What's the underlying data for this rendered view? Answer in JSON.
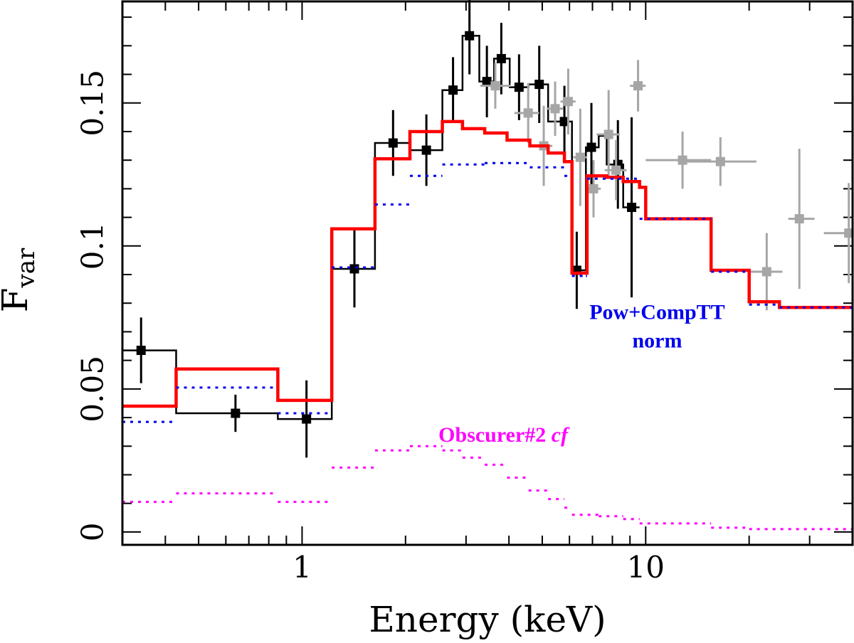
{
  "chart_data": {
    "type": "line",
    "xlabel": "Energy (keV)",
    "ylabel_main": "F",
    "ylabel_sub": "var",
    "x_scale": "log",
    "xlim": [
      0.3,
      40
    ],
    "ylim": [
      -0.0045,
      0.1855
    ],
    "x_tick_labels": [
      {
        "value": 1,
        "label": "1"
      },
      {
        "value": 10,
        "label": "10"
      }
    ],
    "y_tick_labels": [
      {
        "value": 0,
        "label": "0"
      },
      {
        "value": 0.05,
        "label": "0.05"
      },
      {
        "value": 0.1,
        "label": "0.1"
      },
      {
        "value": 0.15,
        "label": "0.15"
      }
    ],
    "y_major_ticks": [
      0,
      0.05,
      0.1,
      0.15
    ],
    "y_minor_step": 0.01,
    "x_major_ticks": [
      1,
      10
    ],
    "x_minor_ticks": [
      0.3,
      0.4,
      0.5,
      0.6,
      0.7,
      0.8,
      0.9,
      2,
      3,
      4,
      5,
      6,
      7,
      8,
      9,
      20,
      30,
      40
    ],
    "grid": false,
    "colors": {
      "black_data": "#000000",
      "grey_data": "#a6a6a6",
      "red_model": "#ff0000",
      "blue_model": "#0000ee",
      "magenta_model": "#ff00ff"
    },
    "annotations": [
      {
        "name": "blue-label-line1",
        "text": "Pow+CompTT",
        "color": "#0000ee",
        "x": 10.8,
        "y": 0.0745,
        "italic": false
      },
      {
        "name": "blue-label-line2",
        "text": "norm",
        "color": "#0000ee",
        "x": 10.8,
        "y": 0.0645,
        "italic": false
      },
      {
        "name": "magenta-label",
        "text": "Obscurer#2",
        "suffix": "cf",
        "color": "#ff00ff",
        "x": 3.85,
        "y": 0.0315,
        "italic_suffix": true
      }
    ],
    "series": [
      {
        "id": "black_data",
        "style": "step-data",
        "color": "#000000",
        "points": [
          {
            "x": 0.34,
            "xlo": 0.3,
            "xhi": 0.43,
            "y": 0.0635,
            "yerr": 0.0115
          },
          {
            "x": 0.64,
            "xlo": 0.43,
            "xhi": 0.85,
            "y": 0.0415,
            "yerr": 0.0065
          },
          {
            "x": 1.03,
            "xlo": 0.85,
            "xhi": 1.22,
            "y": 0.0395,
            "yerr": 0.0135
          },
          {
            "x": 1.42,
            "xlo": 1.22,
            "xhi": 1.63,
            "y": 0.092,
            "yerr": 0.0135
          },
          {
            "x": 1.84,
            "xlo": 1.63,
            "xhi": 2.06,
            "y": 0.136,
            "yerr": 0.0115
          },
          {
            "x": 2.3,
            "xlo": 2.06,
            "xhi": 2.56,
            "y": 0.1335,
            "yerr": 0.0125
          },
          {
            "x": 2.75,
            "xlo": 2.56,
            "xhi": 2.93,
            "y": 0.1545,
            "yerr": 0.0115
          },
          {
            "x": 3.07,
            "xlo": 2.93,
            "xhi": 3.28,
            "y": 0.1735,
            "yerr": 0.0135
          },
          {
            "x": 3.45,
            "xlo": 3.28,
            "xhi": 3.62,
            "y": 0.1575,
            "yerr": 0.0125
          },
          {
            "x": 3.8,
            "xlo": 3.62,
            "xhi": 4.02,
            "y": 0.1655,
            "yerr": 0.0125
          },
          {
            "x": 4.28,
            "xlo": 4.02,
            "xhi": 4.56,
            "y": 0.1555,
            "yerr": 0.0115
          },
          {
            "x": 4.9,
            "xlo": 4.56,
            "xhi": 5.2,
            "y": 0.1565,
            "yerr": 0.0135
          },
          {
            "x": 5.8,
            "xlo": 5.2,
            "xhi": 6.1,
            "y": 0.1435,
            "yerr": 0.0125
          },
          {
            "x": 6.3,
            "xlo": 6.1,
            "xhi": 6.7,
            "y": 0.0915,
            "yerr": 0.0135
          },
          {
            "x": 6.95,
            "xlo": 6.7,
            "xhi": 7.3,
            "y": 0.1345,
            "yerr": 0.0155
          },
          {
            "x": 8.3,
            "xlo": 7.7,
            "xhi": 8.6,
            "y": 0.1285,
            "yerr": 0.0155
          },
          {
            "x": 9.1,
            "xlo": 8.6,
            "xhi": 9.6,
            "y": 0.1135,
            "yerr": 0.0315
          }
        ],
        "step_outline": [
          [
            0.3,
            0.0635
          ],
          [
            0.43,
            0.0635
          ],
          [
            0.43,
            0.0415
          ],
          [
            0.85,
            0.0415
          ],
          [
            0.85,
            0.0395
          ],
          [
            1.22,
            0.0395
          ],
          [
            1.22,
            0.092
          ],
          [
            1.63,
            0.092
          ],
          [
            1.63,
            0.136
          ],
          [
            2.06,
            0.136
          ],
          [
            2.06,
            0.1335
          ],
          [
            2.56,
            0.1335
          ],
          [
            2.56,
            0.1545
          ],
          [
            2.93,
            0.1545
          ],
          [
            2.93,
            0.1735
          ],
          [
            3.28,
            0.1735
          ],
          [
            3.28,
            0.1575
          ],
          [
            3.62,
            0.1575
          ],
          [
            3.62,
            0.1655
          ],
          [
            4.02,
            0.1655
          ],
          [
            4.02,
            0.1555
          ],
          [
            4.56,
            0.1555
          ],
          [
            4.56,
            0.1565
          ],
          [
            5.2,
            0.1565
          ],
          [
            5.2,
            0.1435
          ],
          [
            6.1,
            0.1435
          ],
          [
            6.1,
            0.0915
          ],
          [
            6.7,
            0.0915
          ],
          [
            6.7,
            0.1345
          ],
          [
            7.3,
            0.1345
          ],
          [
            7.3,
            0.1385
          ],
          [
            7.7,
            0.1385
          ],
          [
            7.7,
            0.1285
          ],
          [
            8.6,
            0.1285
          ],
          [
            8.6,
            0.1135
          ],
          [
            9.6,
            0.1135
          ]
        ]
      },
      {
        "id": "grey_data",
        "style": "points",
        "color": "#a6a6a6",
        "points": [
          {
            "x": 3.65,
            "xlo": 3.3,
            "xhi": 4.05,
            "y": 0.156,
            "yerr": 0.008
          },
          {
            "x": 4.55,
            "xlo": 4.15,
            "xhi": 4.9,
            "y": 0.1465,
            "yerr": 0.0105
          },
          {
            "x": 5.05,
            "xlo": 4.8,
            "xhi": 5.35,
            "y": 0.135,
            "yerr": 0.014
          },
          {
            "x": 5.45,
            "xlo": 5.15,
            "xhi": 5.75,
            "y": 0.148,
            "yerr": 0.0095
          },
          {
            "x": 5.95,
            "xlo": 5.65,
            "xhi": 6.25,
            "y": 0.1505,
            "yerr": 0.0115
          },
          {
            "x": 6.45,
            "xlo": 6.15,
            "xhi": 6.75,
            "y": 0.131,
            "yerr": 0.017
          },
          {
            "x": 7.05,
            "xlo": 6.75,
            "xhi": 7.4,
            "y": 0.12,
            "yerr": 0.01
          },
          {
            "x": 7.8,
            "xlo": 7.2,
            "xhi": 8.4,
            "y": 0.139,
            "yerr": 0.0155
          },
          {
            "x": 8.2,
            "xlo": 7.6,
            "xhi": 8.8,
            "y": 0.1265,
            "yerr": 0.0105
          },
          {
            "x": 9.5,
            "xlo": 9.0,
            "xhi": 10.0,
            "y": 0.156,
            "yerr": 0.009
          },
          {
            "x": 12.8,
            "xlo": 10.0,
            "xhi": 15.5,
            "y": 0.13,
            "yerr": 0.01
          },
          {
            "x": 16.5,
            "xlo": 13.0,
            "xhi": 21.0,
            "y": 0.1295,
            "yerr": 0.0085
          },
          {
            "x": 22.5,
            "xlo": 20.0,
            "xhi": 25.0,
            "y": 0.091,
            "yerr": 0.0135
          },
          {
            "x": 28.0,
            "xlo": 26.0,
            "xhi": 31.0,
            "y": 0.1095,
            "yerr": 0.0245
          },
          {
            "x": 39.0,
            "xlo": 33.0,
            "xhi": 40.0,
            "y": 0.1045,
            "yerr": 0.0175
          }
        ]
      },
      {
        "id": "red_model",
        "style": "step-line",
        "color": "#ff0000",
        "width": 4.5,
        "steps": [
          [
            0.3,
            0.044
          ],
          [
            0.43,
            0.057
          ],
          [
            0.85,
            0.046
          ],
          [
            1.22,
            0.106
          ],
          [
            1.63,
            0.1305
          ],
          [
            2.06,
            0.14
          ],
          [
            2.56,
            0.1435
          ],
          [
            2.93,
            0.141
          ],
          [
            3.4,
            0.1395
          ],
          [
            3.95,
            0.137
          ],
          [
            4.6,
            0.135
          ],
          [
            5.2,
            0.1325
          ],
          [
            5.8,
            0.1295
          ],
          [
            6.1,
            0.0905
          ],
          [
            6.7,
            0.0905
          ],
          [
            6.75,
            0.1245
          ],
          [
            7.7,
            0.124
          ],
          [
            8.6,
            0.1225
          ],
          [
            9.6,
            0.1205
          ],
          [
            10.0,
            0.1095
          ],
          [
            15.5,
            0.0915
          ],
          [
            20.0,
            0.0805
          ],
          [
            24.5,
            0.0785
          ],
          [
            40.0,
            0.0785
          ]
        ]
      },
      {
        "id": "blue_model",
        "style": "dotted-steps",
        "color": "#0000ee",
        "steps": [
          [
            0.3,
            0.0385
          ],
          [
            0.43,
            0.0505
          ],
          [
            0.85,
            0.0415
          ],
          [
            1.22,
            0.0925
          ],
          [
            1.63,
            0.1145
          ],
          [
            2.06,
            0.1245
          ],
          [
            2.56,
            0.1285
          ],
          [
            3.4,
            0.129
          ],
          [
            4.6,
            0.1275
          ],
          [
            5.8,
            0.1245
          ],
          [
            6.1,
            0.0895
          ],
          [
            6.7,
            0.0895
          ],
          [
            6.75,
            0.1235
          ],
          [
            9.6,
            0.1095
          ],
          [
            15.5,
            0.091
          ],
          [
            20.0,
            0.0795
          ],
          [
            24.5,
            0.0785
          ],
          [
            40.0,
            0.0785
          ]
        ]
      },
      {
        "id": "magenta_model",
        "style": "dotted-steps",
        "color": "#ff00ff",
        "steps": [
          [
            0.3,
            0.0105
          ],
          [
            0.43,
            0.0135
          ],
          [
            0.85,
            0.0105
          ],
          [
            1.22,
            0.0225
          ],
          [
            1.63,
            0.0285
          ],
          [
            2.06,
            0.03
          ],
          [
            2.56,
            0.0285
          ],
          [
            2.93,
            0.026
          ],
          [
            3.4,
            0.0235
          ],
          [
            3.95,
            0.019
          ],
          [
            4.56,
            0.0145
          ],
          [
            5.2,
            0.0115
          ],
          [
            5.8,
            0.0085
          ],
          [
            6.1,
            0.006
          ],
          [
            7.3,
            0.0055
          ],
          [
            8.6,
            0.0045
          ],
          [
            9.6,
            0.003
          ],
          [
            15.5,
            0.0015
          ],
          [
            20.0,
            0.001
          ],
          [
            40.0,
            0.0005
          ]
        ]
      }
    ]
  }
}
